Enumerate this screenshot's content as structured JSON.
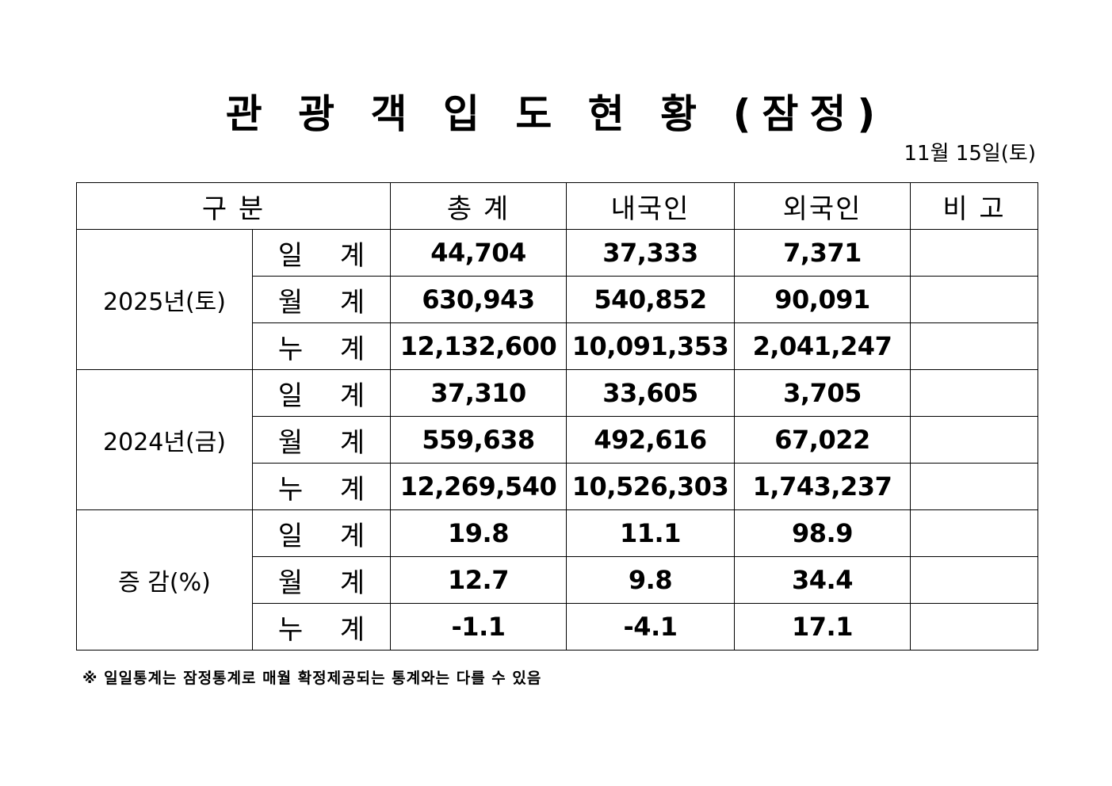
{
  "title": "관 광 객 입 도 현 황 (잠정)",
  "date": "11월  15일(토)",
  "headers": {
    "category": "구    분",
    "total": "총    계",
    "domestic": "내국인",
    "foreign": "외국인",
    "remarks": "비    고"
  },
  "groups": [
    {
      "label": "2025년(토)",
      "rows": [
        {
          "type": "일 계",
          "total": "44,704",
          "domestic": "37,333",
          "foreign": "7,371",
          "remarks": ""
        },
        {
          "type": "월 계",
          "total": "630,943",
          "domestic": "540,852",
          "foreign": "90,091",
          "remarks": ""
        },
        {
          "type": "누 계",
          "total": "12,132,600",
          "domestic": "10,091,353",
          "foreign": "2,041,247",
          "remarks": ""
        }
      ]
    },
    {
      "label": "2024년(금)",
      "rows": [
        {
          "type": "일 계",
          "total": "37,310",
          "domestic": "33,605",
          "foreign": "3,705",
          "remarks": ""
        },
        {
          "type": "월 계",
          "total": "559,638",
          "domestic": "492,616",
          "foreign": "67,022",
          "remarks": ""
        },
        {
          "type": "누 계",
          "total": "12,269,540",
          "domestic": "10,526,303",
          "foreign": "1,743,237",
          "remarks": ""
        }
      ]
    },
    {
      "label": "증  감(%)",
      "rows": [
        {
          "type": "일 계",
          "total": "19.8",
          "domestic": "11.1",
          "foreign": "98.9",
          "remarks": ""
        },
        {
          "type": "월 계",
          "total": "12.7",
          "domestic": "9.8",
          "foreign": "34.4",
          "remarks": ""
        },
        {
          "type": "누 계",
          "total": "-1.1",
          "domestic": "-4.1",
          "foreign": "17.1",
          "remarks": ""
        }
      ]
    }
  ],
  "note": "※ 일일통계는 잠정통계로 매월 확정제공되는 통계와는 다를 수 있음"
}
